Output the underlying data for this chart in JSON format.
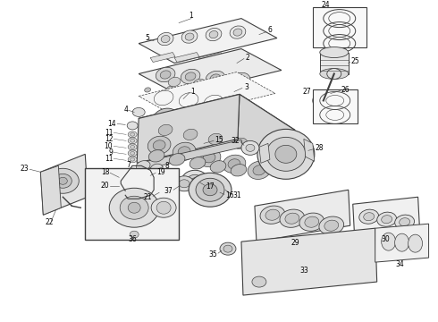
{
  "background_color": "#ffffff",
  "figsize": [
    4.9,
    3.6
  ],
  "dpi": 100,
  "line_color": "#404040",
  "text_color": "#000000",
  "font_size": 5.5,
  "lw": 0.7
}
